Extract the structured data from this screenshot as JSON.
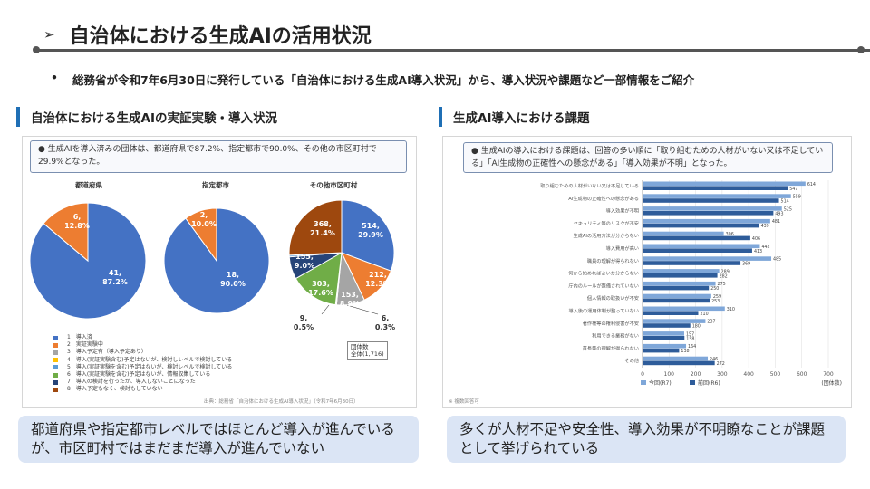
{
  "header": {
    "arrow": "➢",
    "title": "自治体における生成AIの活用状況"
  },
  "intro": {
    "bullet": "•",
    "text": "総務省が令和7年6月30日に発行している「自治体における生成AI導入状況」から、導入状況や課題など一部情報をご紹介"
  },
  "left_section": {
    "heading": "自治体における生成AIの実証実験・導入状況",
    "callout": "● 生成AIを導入済みの団体は、都道府県で87.2%、指定都市で90.0%、その他の市区町村で29.9%となった。",
    "pies": [
      {
        "title": "都道府県",
        "major_label": "41,",
        "major_pct": "87.2%",
        "minor_label": "6,",
        "minor_pct": "12.8%"
      },
      {
        "title": "指定都市",
        "major_label": "18,",
        "major_pct": "90.0%",
        "minor_label": "2,",
        "minor_pct": "10.0%"
      },
      {
        "title": "その他市区町村"
      }
    ],
    "municipal_slices": [
      {
        "count": "514,",
        "pct": "29.9%"
      },
      {
        "count": "212,",
        "pct": "12.3%"
      },
      {
        "count": "153,",
        "pct": "8.9%"
      },
      {
        "count": "6,",
        "pct": "0.3%"
      },
      {
        "count": "303,",
        "pct": "17.6%"
      },
      {
        "count": "155,",
        "pct": "9.0%"
      },
      {
        "count": "9,",
        "pct": "0.5%"
      },
      {
        "count": "368,",
        "pct": "21.4%"
      }
    ],
    "legend": [
      {
        "label": "1　導入済",
        "color": "#4472c4"
      },
      {
        "label": "2　実証実験中",
        "color": "#ed7d31"
      },
      {
        "label": "3　導入予定有（導入予定あり）",
        "color": "#a5a5a5"
      },
      {
        "label": "4　導入(実証実験含む)予定はないが、検討しレベルで検討している",
        "color": "#ffc000"
      },
      {
        "label": "5　導入(実証実験を含む)予定はないが、検討レベルで検討している",
        "color": "#5b9bd5"
      },
      {
        "label": "6　導入(実証実験を含む)予定はないが、情報収集している",
        "color": "#70ad47"
      },
      {
        "label": "7　導入の検討を行ったが、導入しないことになった",
        "color": "#264478"
      },
      {
        "label": "8　導入予定もなく、検討もしていない",
        "color": "#9e480e"
      }
    ],
    "total_box": "団体数\n全体(1,716)",
    "footnote": "出典：総務省「自治体における生成AI導入状況」（令和7年6月30日）"
  },
  "right_section": {
    "heading": "生成AI導入における課題",
    "callout": "● 生成AIの導入における課題は、回答の多い順に「取り組むための人材がいない又は不足している」「AI生成物の正確性への懸念がある」「導入効果が不明」となった。",
    "bar_rows": [
      {
        "label": "取り組むための人材がいない又は不足している",
        "current": 614,
        "previous": 547
      },
      {
        "label": "AI生成物の正確性への懸念がある",
        "current": 559,
        "previous": 514
      },
      {
        "label": "導入効果が不明",
        "current": 525,
        "previous": 493
      },
      {
        "label": "セキュリティ等のリスクが不安",
        "current": 481,
        "previous": 439
      },
      {
        "label": "生成AIの活用方法が分からない",
        "current": 306,
        "previous": 406
      },
      {
        "label": "導入費用が高い",
        "current": 442,
        "previous": 413
      },
      {
        "label": "職員の理解が得られない",
        "current": 485,
        "previous": 369
      },
      {
        "label": "何から始めればよいか分からない",
        "current": 289,
        "previous": 282
      },
      {
        "label": "庁内のルールが整備されていない",
        "current": 275,
        "previous": 250
      },
      {
        "label": "個人情報の取扱いが不安",
        "current": 259,
        "previous": 253
      },
      {
        "label": "導入後の運用体制が整っていない",
        "current": 310,
        "previous": 210
      },
      {
        "label": "著作権等の権利侵害が不安",
        "current": 237,
        "previous": 180
      },
      {
        "label": "利用できる業務がない",
        "current": 157,
        "previous": 158
      },
      {
        "label": "首長等の理解が得られない",
        "current": 164,
        "previous": 138
      },
      {
        "label": "その他",
        "current": 246,
        "previous": 272
      }
    ],
    "axis_ticks": [
      "0",
      "100",
      "200",
      "300",
      "400",
      "500",
      "600",
      "700"
    ],
    "legend_current": "今回(R7)",
    "legend_previous": "前回(R6)",
    "unit": "(団体数)",
    "footnote": "※ 複数回答可"
  },
  "summaries": {
    "left": "都道府県や指定都市レベルではほとんど導入が進んでいるが、市区町村ではまだまだ導入が進んでいない",
    "right": "多くが人材不足や安全性、導入効果が不明瞭なことが課題として挙げられている"
  },
  "colors": {
    "accent": "#1f6fb5",
    "pie_blue": "#4472c4",
    "pie_orange": "#ed7d31",
    "bar_current": "#2e5c9a",
    "bar_previous": "#7fa7d9",
    "summary_bg": "#dbe5f5"
  }
}
